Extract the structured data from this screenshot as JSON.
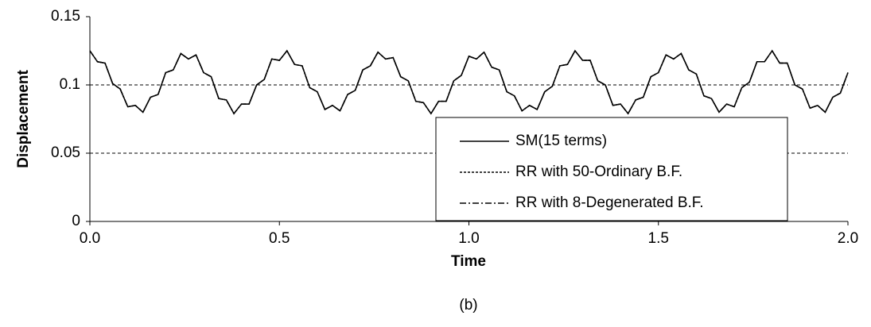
{
  "chart_data": {
    "type": "line",
    "caption": "(b)",
    "xlabel": "Time",
    "ylabel": "Displacement",
    "xlim": [
      0,
      2
    ],
    "ylim": [
      0,
      0.15
    ],
    "xticks": [
      {
        "value": 0,
        "label": "0.0"
      },
      0.5,
      {
        "value": 1,
        "label": "1.0"
      },
      1.5,
      {
        "value": 2,
        "label": "2.0"
      }
    ],
    "yticks": [
      0,
      0.05,
      0.1,
      0.15
    ],
    "grid": true,
    "grid_style": "dashed",
    "legend_position": "lower right",
    "x": [
      0,
      0.02,
      0.04,
      0.06,
      0.08,
      0.1,
      0.12,
      0.14,
      0.16,
      0.18,
      0.2,
      0.22,
      0.24,
      0.26,
      0.28,
      0.3,
      0.32,
      0.34,
      0.36,
      0.38,
      0.4,
      0.42,
      0.44,
      0.46,
      0.48,
      0.5,
      0.52,
      0.54,
      0.56,
      0.58,
      0.6,
      0.62,
      0.64,
      0.66,
      0.68,
      0.7,
      0.72,
      0.74,
      0.76,
      0.78,
      0.8,
      0.82,
      0.84,
      0.86,
      0.88,
      0.9,
      0.92,
      0.94,
      0.96,
      0.98,
      1,
      1.02,
      1.04,
      1.06,
      1.08,
      1.1,
      1.12,
      1.14,
      1.16,
      1.18,
      1.2,
      1.22,
      1.24,
      1.26,
      1.28,
      1.3,
      1.32,
      1.34,
      1.36,
      1.38,
      1.4,
      1.42,
      1.44,
      1.46,
      1.48,
      1.5,
      1.52,
      1.54,
      1.56,
      1.58,
      1.6,
      1.62,
      1.64,
      1.66,
      1.68,
      1.7,
      1.72,
      1.74,
      1.76,
      1.78,
      1.8,
      1.82,
      1.84,
      1.86,
      1.88,
      1.9,
      1.92,
      1.94,
      1.96,
      1.98,
      2
    ],
    "series": [
      {
        "name": "SM(15 terms)",
        "color": "#000000",
        "dash": "solid",
        "values": [
          0.125,
          0.117,
          0.116,
          0.101,
          0.097,
          0.084,
          0.085,
          0.08,
          0.091,
          0.093,
          0.109,
          0.111,
          0.123,
          0.119,
          0.122,
          0.109,
          0.106,
          0.09,
          0.089,
          0.079,
          0.086,
          0.086,
          0.1,
          0.104,
          0.119,
          0.118,
          0.125,
          0.115,
          0.114,
          0.098,
          0.095,
          0.082,
          0.085,
          0.081,
          0.093,
          0.096,
          0.111,
          0.114,
          0.124,
          0.119,
          0.12,
          0.106,
          0.103,
          0.088,
          0.087,
          0.079,
          0.088,
          0.088,
          0.103,
          0.107,
          0.121,
          0.119,
          0.124,
          0.113,
          0.111,
          0.095,
          0.092,
          0.081,
          0.085,
          0.082,
          0.095,
          0.099,
          0.114,
          0.115,
          0.125,
          0.118,
          0.118,
          0.103,
          0.1,
          0.085,
          0.086,
          0.079,
          0.089,
          0.091,
          0.106,
          0.109,
          0.122,
          0.119,
          0.123,
          0.111,
          0.108,
          0.092,
          0.09,
          0.08,
          0.086,
          0.084,
          0.098,
          0.102,
          0.117,
          0.117,
          0.125,
          0.116,
          0.116,
          0.1,
          0.097,
          0.083,
          0.085,
          0.08,
          0.091,
          0.094,
          0.109
        ]
      },
      {
        "name": "RR with 50-Ordinary B.F.",
        "color": "#000000",
        "dash": "dotted",
        "values": [
          0.125,
          0.117,
          0.116,
          0.101,
          0.097,
          0.084,
          0.085,
          0.08,
          0.091,
          0.093,
          0.109,
          0.111,
          0.123,
          0.119,
          0.122,
          0.109,
          0.106,
          0.09,
          0.089,
          0.079,
          0.086,
          0.086,
          0.1,
          0.104,
          0.119,
          0.118,
          0.125,
          0.115,
          0.114,
          0.098,
          0.095,
          0.082,
          0.085,
          0.081,
          0.093,
          0.096,
          0.111,
          0.114,
          0.124,
          0.119,
          0.12,
          0.106,
          0.103,
          0.088,
          0.087,
          0.079,
          0.088,
          0.088,
          0.103,
          0.107,
          0.121,
          0.119,
          0.124,
          0.113,
          0.111,
          0.095,
          0.092,
          0.081,
          0.085,
          0.082,
          0.095,
          0.099,
          0.114,
          0.115,
          0.125,
          0.118,
          0.118,
          0.103,
          0.1,
          0.085,
          0.086,
          0.079,
          0.089,
          0.091,
          0.106,
          0.109,
          0.122,
          0.119,
          0.123,
          0.111,
          0.108,
          0.092,
          0.09,
          0.08,
          0.086,
          0.084,
          0.098,
          0.102,
          0.117,
          0.117,
          0.125,
          0.116,
          0.116,
          0.1,
          0.097,
          0.083,
          0.085,
          0.08,
          0.091,
          0.094,
          0.109
        ]
      },
      {
        "name": "RR with 8-Degenerated B.F.",
        "color": "#000000",
        "dash": "dashdot",
        "values": [
          0.125,
          0.117,
          0.116,
          0.101,
          0.097,
          0.084,
          0.085,
          0.08,
          0.091,
          0.093,
          0.109,
          0.111,
          0.123,
          0.119,
          0.122,
          0.109,
          0.106,
          0.09,
          0.089,
          0.079,
          0.086,
          0.086,
          0.1,
          0.104,
          0.119,
          0.118,
          0.125,
          0.115,
          0.114,
          0.098,
          0.095,
          0.082,
          0.085,
          0.081,
          0.093,
          0.096,
          0.111,
          0.114,
          0.124,
          0.119,
          0.12,
          0.106,
          0.103,
          0.088,
          0.087,
          0.079,
          0.088,
          0.088,
          0.103,
          0.107,
          0.121,
          0.119,
          0.124,
          0.113,
          0.111,
          0.095,
          0.092,
          0.081,
          0.085,
          0.082,
          0.095,
          0.099,
          0.114,
          0.115,
          0.125,
          0.118,
          0.118,
          0.103,
          0.1,
          0.085,
          0.086,
          0.079,
          0.089,
          0.091,
          0.106,
          0.109,
          0.122,
          0.119,
          0.123,
          0.111,
          0.108,
          0.092,
          0.09,
          0.08,
          0.086,
          0.084,
          0.098,
          0.102,
          0.117,
          0.117,
          0.125,
          0.116,
          0.116,
          0.1,
          0.097,
          0.083,
          0.085,
          0.08,
          0.091,
          0.094,
          0.109
        ]
      }
    ]
  }
}
